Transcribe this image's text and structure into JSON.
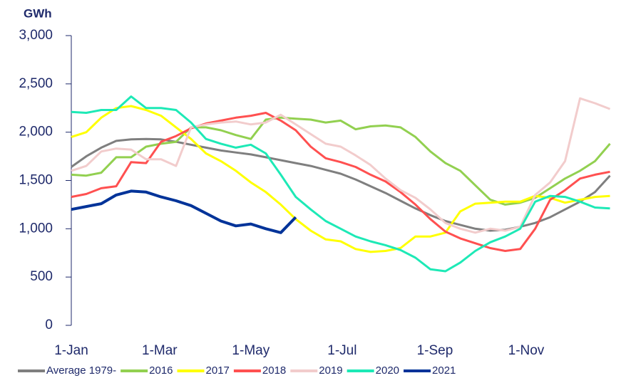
{
  "chart_data": {
    "type": "line",
    "y_label": "GWh",
    "x": [
      0,
      10,
      20,
      30,
      40,
      50,
      60,
      70,
      80,
      90,
      100,
      110,
      120,
      130,
      140,
      150,
      160,
      170,
      180,
      190,
      200,
      210,
      220,
      230,
      240,
      250,
      260,
      270,
      280,
      290,
      300,
      310,
      320,
      330,
      340,
      350,
      360
    ],
    "xlim": [
      0,
      365
    ],
    "xticks": [
      {
        "value": 0,
        "label": "1-Jan"
      },
      {
        "value": 59,
        "label": "1-Mar"
      },
      {
        "value": 120,
        "label": "1-May"
      },
      {
        "value": 181,
        "label": "1-Jul"
      },
      {
        "value": 243,
        "label": "1-Sep"
      },
      {
        "value": 304,
        "label": "1-Nov"
      }
    ],
    "ylim": [
      0,
      3000
    ],
    "yticks": [
      0,
      500,
      {
        "value": 1000,
        "label": "1,000"
      },
      {
        "value": 1500,
        "label": "1,500"
      },
      {
        "value": 2000,
        "label": "2,000"
      },
      {
        "value": 2500,
        "label": "2,500"
      },
      {
        "value": 3000,
        "label": "3,000"
      }
    ],
    "grid": false,
    "legend": "bottom",
    "series": [
      {
        "name": "Average 1979-",
        "color": "#7f7f7f",
        "values": [
          1640,
          1750,
          1840,
          1910,
          1925,
          1930,
          1925,
          1900,
          1870,
          1840,
          1810,
          1790,
          1770,
          1740,
          1710,
          1680,
          1650,
          1610,
          1570,
          1510,
          1440,
          1370,
          1290,
          1210,
          1140,
          1080,
          1040,
          1000,
          980,
          990,
          1020,
          1060,
          1120,
          1200,
          1280,
          1380,
          1550
        ]
      },
      {
        "name": "2016",
        "color": "#92d050",
        "values": [
          1560,
          1550,
          1580,
          1740,
          1740,
          1850,
          1880,
          1900,
          2050,
          2050,
          2020,
          1970,
          1930,
          2130,
          2150,
          2140,
          2130,
          2100,
          2120,
          2030,
          2060,
          2070,
          2050,
          1950,
          1800,
          1680,
          1600,
          1450,
          1300,
          1250,
          1270,
          1320,
          1420,
          1520,
          1600,
          1700,
          1880
        ]
      },
      {
        "name": "2017",
        "color": "#ffff00",
        "values": [
          1950,
          2000,
          2150,
          2250,
          2270,
          2230,
          2170,
          2050,
          1930,
          1780,
          1700,
          1600,
          1480,
          1380,
          1250,
          1100,
          980,
          890,
          870,
          790,
          760,
          770,
          800,
          920,
          920,
          960,
          1180,
          1260,
          1270,
          1280,
          1280,
          1340,
          1320,
          1270,
          1300,
          1330,
          1340
        ]
      },
      {
        "name": "2018",
        "color": "#ff5050",
        "values": [
          1330,
          1360,
          1420,
          1440,
          1690,
          1680,
          1900,
          1960,
          2040,
          2090,
          2120,
          2150,
          2170,
          2200,
          2120,
          2020,
          1850,
          1730,
          1690,
          1640,
          1560,
          1490,
          1380,
          1250,
          1100,
          970,
          900,
          850,
          800,
          770,
          790,
          1000,
          1300,
          1400,
          1520,
          1560,
          1590
        ]
      },
      {
        "name": "2019",
        "color": "#f2cccc",
        "values": [
          1600,
          1650,
          1800,
          1830,
          1820,
          1720,
          1720,
          1650,
          2050,
          2080,
          2100,
          2110,
          2080,
          2100,
          2180,
          2080,
          1980,
          1880,
          1850,
          1760,
          1660,
          1520,
          1400,
          1320,
          1200,
          1060,
          1000,
          960,
          1000,
          980,
          1020,
          1350,
          1480,
          1700,
          2350,
          2300,
          2240
        ]
      },
      {
        "name": "2020",
        "color": "#1de9b6",
        "values": [
          2210,
          2200,
          2230,
          2230,
          2370,
          2250,
          2250,
          2230,
          2100,
          1930,
          1880,
          1840,
          1870,
          1780,
          1560,
          1330,
          1200,
          1080,
          1000,
          920,
          870,
          830,
          780,
          700,
          580,
          560,
          650,
          770,
          860,
          920,
          1000,
          1280,
          1340,
          1330,
          1280,
          1220,
          1210
        ]
      },
      {
        "name": "2021",
        "color": "#003399",
        "width": 4,
        "values": [
          1200,
          1230,
          1260,
          1350,
          1390,
          1380,
          1330,
          1290,
          1240,
          1160,
          1080,
          1030,
          1050,
          1000,
          960,
          1120,
          null,
          null,
          null,
          null,
          null,
          null,
          null,
          null,
          null,
          null,
          null,
          null,
          null,
          null,
          null,
          null,
          null,
          null,
          null,
          null,
          null
        ]
      }
    ]
  }
}
